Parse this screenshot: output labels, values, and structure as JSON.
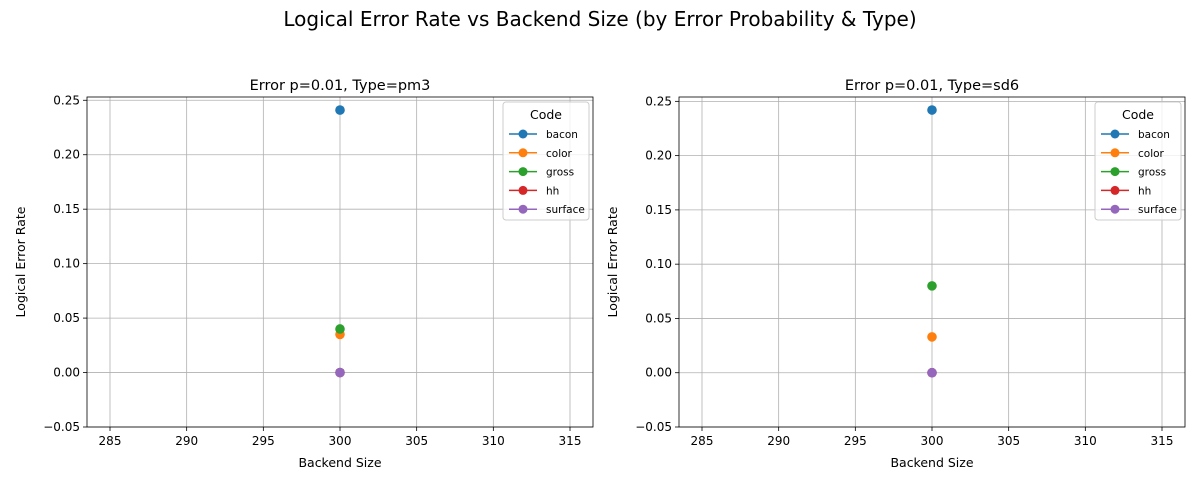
{
  "figure_title": "Logical Error Rate vs Backend Size (by Error Probability & Type)",
  "chart_data": [
    {
      "type": "line",
      "title": "Error p=0.01, Type=pm3",
      "xlabel": "Backend Size",
      "ylabel": "Logical Error Rate",
      "xlim": [
        283.5,
        316.5
      ],
      "ylim": [
        -0.05,
        0.253
      ],
      "xticks": [
        285,
        290,
        295,
        300,
        305,
        310,
        315
      ],
      "yticks": [
        -0.05,
        0.0,
        0.05,
        0.1,
        0.15,
        0.2,
        0.25
      ],
      "ytick_labels": [
        "−0.05",
        "0.00",
        "0.05",
        "0.10",
        "0.15",
        "0.20",
        "0.25"
      ],
      "grid": true,
      "legend": {
        "title": "Code",
        "position": "top-right"
      },
      "series": [
        {
          "name": "bacon",
          "color": "#1f77b4",
          "x": [
            300
          ],
          "y": [
            0.241
          ]
        },
        {
          "name": "color",
          "color": "#ff7f0e",
          "x": [
            300
          ],
          "y": [
            0.035
          ]
        },
        {
          "name": "gross",
          "color": "#2ca02c",
          "x": [
            300
          ],
          "y": [
            0.04
          ]
        },
        {
          "name": "hh",
          "color": "#d62728",
          "x": [
            300
          ],
          "y": [
            0.0
          ]
        },
        {
          "name": "surface",
          "color": "#9467bd",
          "x": [
            300
          ],
          "y": [
            0.0
          ]
        }
      ]
    },
    {
      "type": "line",
      "title": "Error p=0.01, Type=sd6",
      "xlabel": "Backend Size",
      "ylabel": "Logical Error Rate",
      "xlim": [
        283.5,
        316.5
      ],
      "ylim": [
        -0.05,
        0.254
      ],
      "xticks": [
        285,
        290,
        295,
        300,
        305,
        310,
        315
      ],
      "yticks": [
        -0.05,
        0.0,
        0.05,
        0.1,
        0.15,
        0.2,
        0.25
      ],
      "ytick_labels": [
        "−0.05",
        "0.00",
        "0.05",
        "0.10",
        "0.15",
        "0.20",
        "0.25"
      ],
      "grid": true,
      "legend": {
        "title": "Code",
        "position": "top-right"
      },
      "series": [
        {
          "name": "bacon",
          "color": "#1f77b4",
          "x": [
            300
          ],
          "y": [
            0.242
          ]
        },
        {
          "name": "color",
          "color": "#ff7f0e",
          "x": [
            300
          ],
          "y": [
            0.033
          ]
        },
        {
          "name": "gross",
          "color": "#2ca02c",
          "x": [
            300
          ],
          "y": [
            0.08
          ]
        },
        {
          "name": "hh",
          "color": "#d62728",
          "x": [
            300
          ],
          "y": [
            0.0
          ]
        },
        {
          "name": "surface",
          "color": "#9467bd",
          "x": [
            300
          ],
          "y": [
            0.0
          ]
        }
      ]
    }
  ]
}
